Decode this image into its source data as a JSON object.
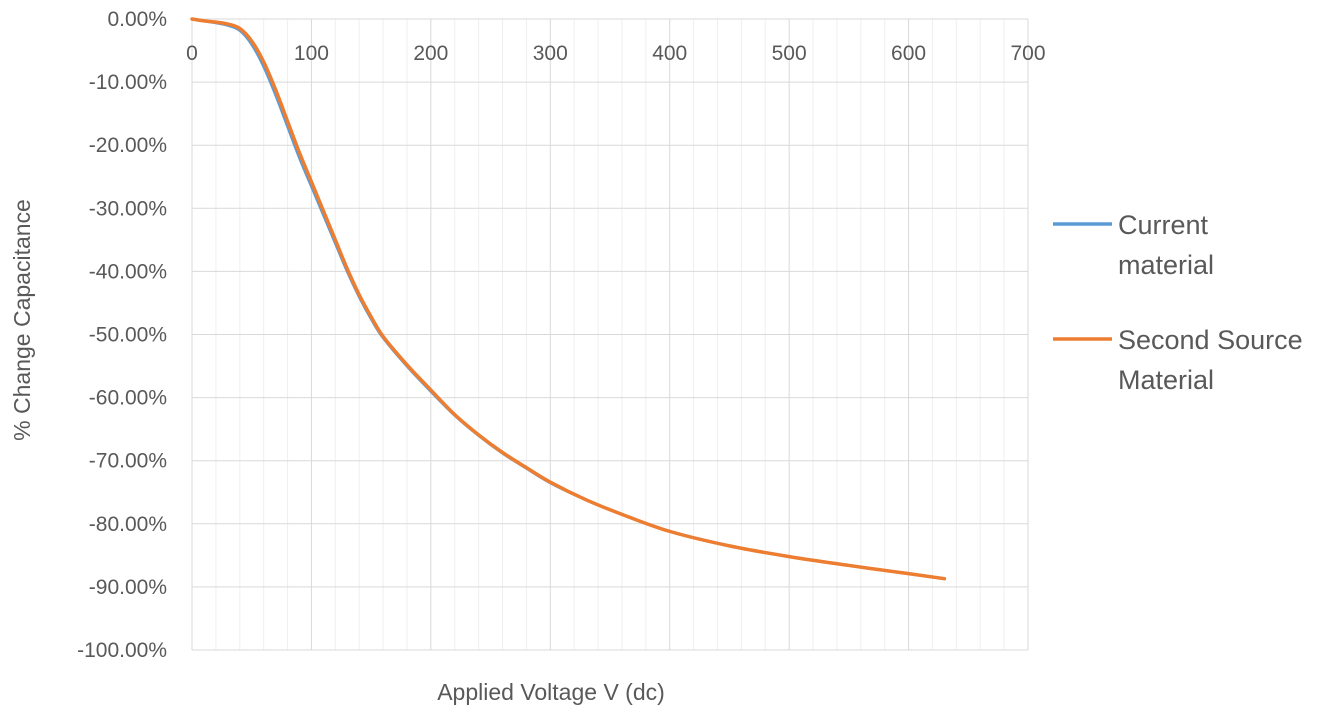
{
  "chart_data": {
    "type": "line",
    "title": "",
    "xlabel": "Applied Voltage V (dc)",
    "ylabel": "% Change Capacitance",
    "xlim": [
      0,
      700
    ],
    "ylim": [
      -1.0,
      0.0
    ],
    "x_ticks": [
      "0",
      "100",
      "200",
      "300",
      "400",
      "500",
      "600",
      "700"
    ],
    "y_ticks": [
      "0.00%",
      "-10.00%",
      "-20.00%",
      "-30.00%",
      "-40.00%",
      "-50.00%",
      "-60.00%",
      "-70.00%",
      "-80.00%",
      "-90.00%",
      "-100.00%"
    ],
    "grid": true,
    "minor_grid": true,
    "legend_position": "right",
    "series": [
      {
        "name": "Current material",
        "color": "#5B9BD5",
        "x": [
          0,
          10,
          20,
          30,
          40,
          50,
          60,
          70,
          80,
          90,
          100,
          110,
          120,
          130,
          140,
          150,
          160,
          180,
          200,
          220,
          240,
          260,
          280,
          300,
          330,
          360,
          400,
          450,
          500,
          550,
          600,
          630
        ],
        "y": [
          0.0,
          -0.003,
          -0.006,
          -0.01,
          -0.018,
          -0.04,
          -0.075,
          -0.12,
          -0.17,
          -0.22,
          -0.265,
          -0.31,
          -0.355,
          -0.4,
          -0.44,
          -0.475,
          -0.505,
          -0.55,
          -0.59,
          -0.628,
          -0.66,
          -0.688,
          -0.712,
          -0.735,
          -0.762,
          -0.785,
          -0.812,
          -0.835,
          -0.852,
          -0.866,
          -0.879,
          -0.887
        ]
      },
      {
        "name": "Second Source Material",
        "color": "#ED7D31",
        "x": [
          0,
          10,
          20,
          30,
          40,
          50,
          60,
          70,
          80,
          90,
          100,
          110,
          120,
          130,
          140,
          150,
          160,
          180,
          200,
          220,
          240,
          260,
          280,
          300,
          330,
          360,
          400,
          450,
          500,
          550,
          600,
          630
        ],
        "y": [
          0.0,
          -0.003,
          -0.005,
          -0.008,
          -0.015,
          -0.035,
          -0.068,
          -0.112,
          -0.162,
          -0.212,
          -0.258,
          -0.304,
          -0.35,
          -0.396,
          -0.437,
          -0.472,
          -0.503,
          -0.548,
          -0.588,
          -0.627,
          -0.659,
          -0.687,
          -0.711,
          -0.734,
          -0.762,
          -0.785,
          -0.812,
          -0.835,
          -0.852,
          -0.866,
          -0.879,
          -0.887
        ]
      }
    ],
    "legend_lines": [
      [
        "Current",
        "material"
      ],
      [
        "Second Source",
        "Material"
      ]
    ]
  }
}
